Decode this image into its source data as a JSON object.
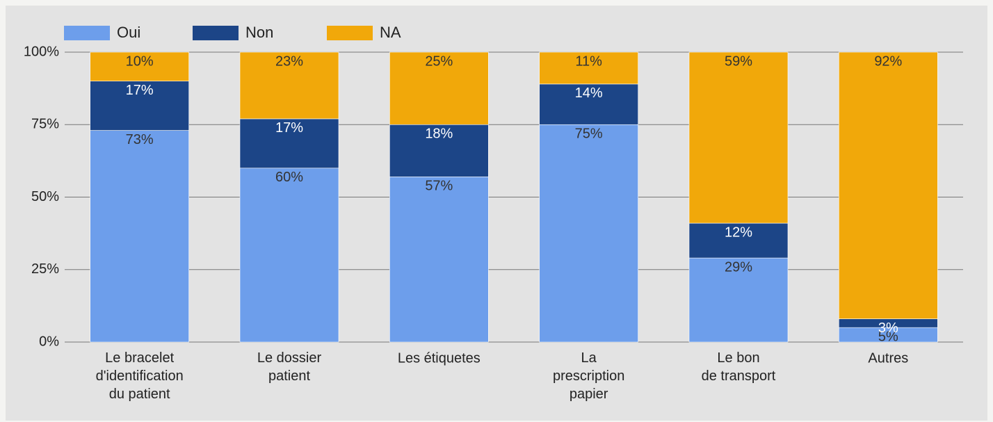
{
  "chart_data": {
    "type": "stacked_bar",
    "categories": [
      "Le bracelet\nd'identification\ndu patient",
      "Le dossier\npatient",
      "Les étiquetes",
      "La\nprescription\npapier",
      "Le bon\nde transport",
      "Autres"
    ],
    "series": [
      {
        "name": "Oui",
        "color": "#6d9eeb",
        "values": [
          73,
          60,
          57,
          75,
          29,
          5
        ],
        "value_labels": [
          "73%",
          "60%",
          "57%",
          "75%",
          "29%",
          "5%"
        ]
      },
      {
        "name": "Non",
        "color": "#1c4587",
        "values": [
          17,
          17,
          18,
          14,
          12,
          3
        ],
        "value_labels": [
          "17%",
          "17%",
          "18%",
          "14%",
          "12%",
          "3%"
        ]
      },
      {
        "name": "NA",
        "color": "#f1a80a",
        "values": [
          10,
          23,
          25,
          11,
          59,
          92
        ],
        "value_labels": [
          "10%",
          "23%",
          "25%",
          "11%",
          "59%",
          "92%"
        ]
      }
    ],
    "ylim": [
      0,
      100
    ],
    "yticks": [
      {
        "value": 0,
        "label": "0%"
      },
      {
        "value": 25,
        "label": "25%"
      },
      {
        "value": 50,
        "label": "50%"
      },
      {
        "value": 75,
        "label": "75%"
      },
      {
        "value": 100,
        "label": "100%"
      }
    ],
    "grid": true,
    "legend": "top"
  }
}
